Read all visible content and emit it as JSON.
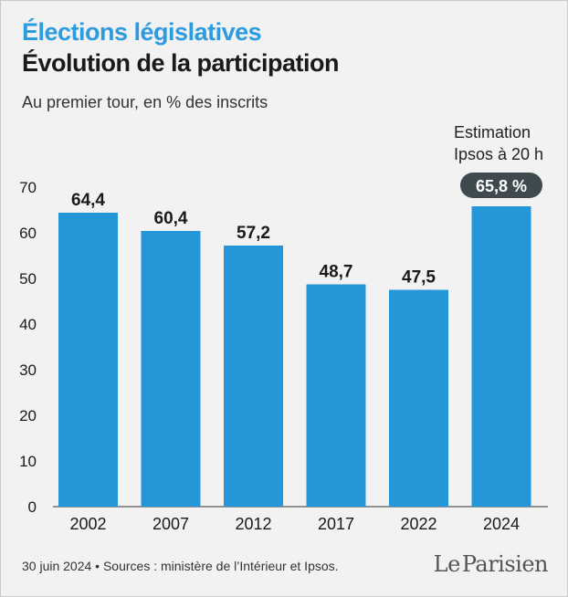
{
  "kicker": "Élections législatives",
  "title": "Évolution de la participation",
  "subtitle": "Au premier tour, en % des inscrits",
  "annotation": {
    "line1": "Estimation",
    "line2": "Ipsos à 20 h"
  },
  "footer": "30 juin 2024 • Sources : ministère de l’Intérieur et Ipsos.",
  "logo": {
    "le": "Le",
    "name": "Parisien"
  },
  "colors": {
    "bar": "#2596d8",
    "highlight_badge": "#3f4a4f",
    "kicker": "#2d9be0"
  },
  "chart_data": {
    "type": "bar",
    "categories": [
      "2002",
      "2007",
      "2012",
      "2017",
      "2022",
      "2024"
    ],
    "values": [
      64.4,
      60.4,
      57.2,
      48.7,
      47.5,
      65.8
    ],
    "value_labels": [
      "64,4",
      "60,4",
      "57,2",
      "48,7",
      "47,5",
      "65,8 %"
    ],
    "highlight_index": 5,
    "yticks": [
      0,
      10,
      20,
      30,
      40,
      50,
      60,
      70
    ],
    "ylim": [
      0,
      70
    ],
    "grid": false
  }
}
